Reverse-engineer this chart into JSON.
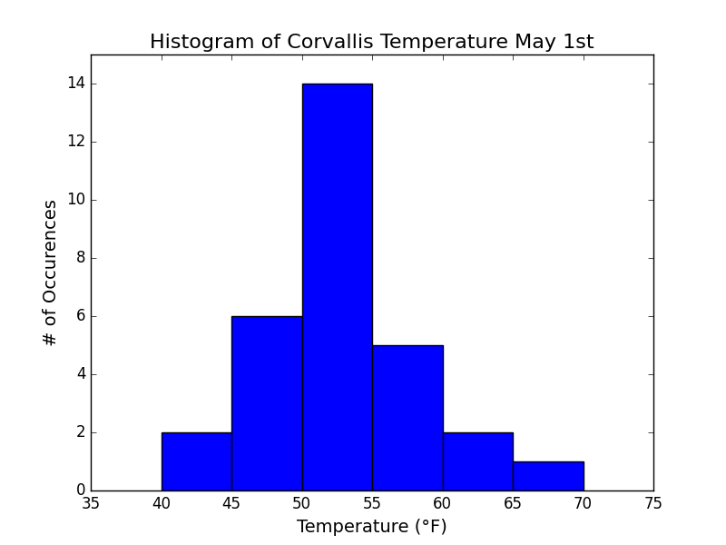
{
  "title": "Histogram of Corvallis Temperature May 1st",
  "xlabel": "Temperature (°F)",
  "ylabel": "# of Occurences",
  "bin_edges": [
    40,
    45,
    50,
    55,
    60,
    65,
    70
  ],
  "counts": [
    2,
    6,
    14,
    5,
    2,
    1
  ],
  "bar_color": "#0000ff",
  "edge_color": "#000000",
  "xlim": [
    35,
    75
  ],
  "ylim": [
    0,
    15
  ],
  "xticks": [
    35,
    40,
    45,
    50,
    55,
    60,
    65,
    70,
    75
  ],
  "yticks": [
    0,
    2,
    4,
    6,
    8,
    10,
    12,
    14
  ],
  "figsize": [
    8.0,
    6.0
  ],
  "dpi": 100,
  "title_fontsize": 16,
  "label_fontsize": 14,
  "tick_fontsize": 12
}
